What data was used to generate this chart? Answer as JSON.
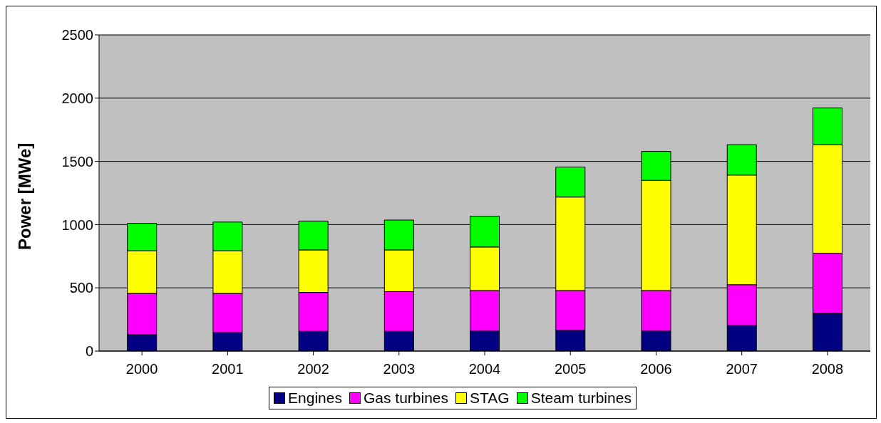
{
  "chart_data": {
    "type": "bar",
    "stacked": true,
    "ylabel": "Power [MWe]",
    "categories": [
      "2000",
      "2001",
      "2002",
      "2003",
      "2004",
      "2005",
      "2006",
      "2007",
      "2008"
    ],
    "series": [
      {
        "name": "Engines",
        "color": "#000080",
        "values": [
          130,
          146,
          156,
          156,
          158,
          164,
          158,
          202,
          298
        ]
      },
      {
        "name": "Gas turbines",
        "color": "#ff00ff",
        "values": [
          326,
          310,
          308,
          314,
          321,
          315,
          321,
          323,
          475
        ]
      },
      {
        "name": "STAG",
        "color": "#ffff00",
        "values": [
          338,
          338,
          336,
          330,
          344,
          739,
          871,
          867,
          859
        ]
      },
      {
        "name": "Steam turbines",
        "color": "#00ff00",
        "values": [
          216,
          226,
          228,
          236,
          244,
          237,
          229,
          240,
          290
        ]
      }
    ],
    "ylim": [
      0,
      2500
    ],
    "yticks": [
      0,
      500,
      1000,
      1500,
      2000,
      2500
    ],
    "grid": "y",
    "legend": "bottom"
  }
}
